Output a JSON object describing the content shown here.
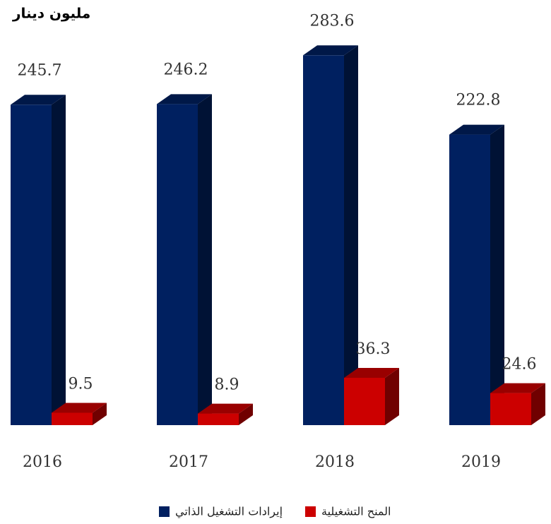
{
  "chart_data": {
    "type": "bar3d",
    "y_label": "مليون دينار",
    "categories": [
      "2016",
      "2017",
      "2018",
      "2019"
    ],
    "series": [
      {
        "name": "إيرادات التشغيل الذاتي",
        "color": "#002060",
        "values": [
          245.7,
          246.2,
          283.6,
          222.8
        ]
      },
      {
        "name": "المنح التشغيلية",
        "color": "#cc0000",
        "values": [
          9.5,
          8.9,
          36.3,
          24.6
        ]
      }
    ],
    "ylim": [
      0,
      300
    ]
  }
}
